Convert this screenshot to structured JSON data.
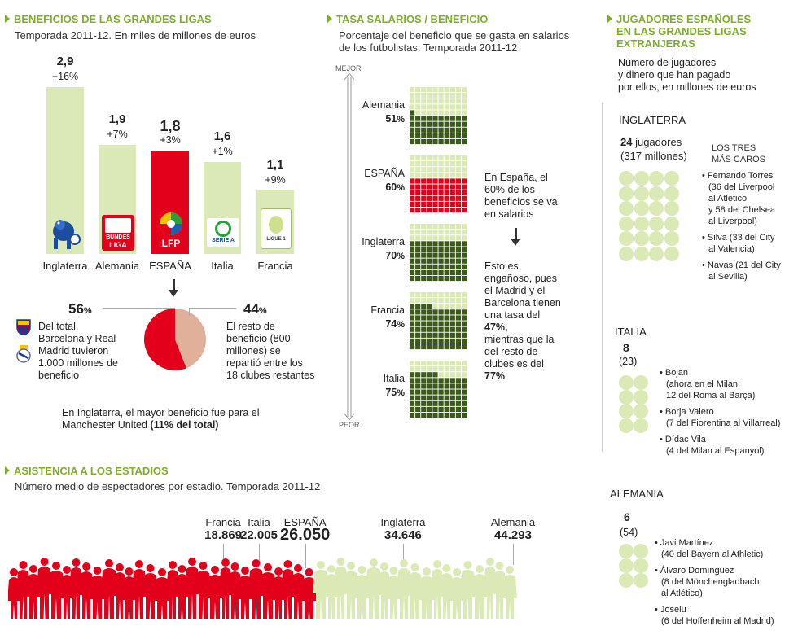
{
  "section1": {
    "title": "BENEFICIOS DE LAS GRANDES LIGAS",
    "subtitle": "Temporada 2011-12. En miles de millones de euros"
  },
  "section2": {
    "title": "TASA SALARIOS / BENEFICIO",
    "subtitle_line1": "Porcentaje del beneficio que se gasta en salarios",
    "subtitle_line2": "de los futbolistas. Temporada 2011-12",
    "axis_top": "MEJOR",
    "axis_bottom": "PEOR",
    "note1": [
      "En España, el",
      "60% de los",
      "beneficios se va",
      "en salarios"
    ],
    "note2": [
      "Esto es",
      "engañoso, pues",
      "el Madrid y el",
      "Barcelona tienen",
      "una tasa del"
    ],
    "note2_bold": "47%,",
    "note3": [
      "mientras que la",
      "del resto de",
      "clubes es del"
    ],
    "note3_bold": "77%"
  },
  "section3": {
    "title_line1": "JUGADORES ESPAÑOLES",
    "title_line2": "EN LAS GRANDES LIGAS",
    "title_line3": "EXTRANJERAS",
    "subtitle": [
      "Número de jugadores",
      "y dinero que han pagado",
      "por ellos, en millones de euros"
    ],
    "england": {
      "name": "INGLATERRA",
      "players": "24",
      "players_word": "jugadores",
      "money": "(317 millones)",
      "top3_title1": "LOS TRES",
      "top3_title2": "MÁS CAROS",
      "items": [
        [
          "• Fernando Torres",
          "(36 del Liverpool",
          "al Atlético",
          "y 58 del Chelsea",
          "al Liverpool)"
        ],
        [
          "• Silva (33 del City",
          "al Valencia)"
        ],
        [
          "• Navas (21 del City",
          "al Sevilla)"
        ]
      ]
    },
    "italy": {
      "name": "ITALIA",
      "players": "8",
      "money": "(23)",
      "items": [
        [
          "• Bojan",
          "(ahora en el Milan;",
          "12 del Roma al Barça)"
        ],
        [
          "• Borja Valero",
          "(7 del Fiorentina al Villarreal)"
        ],
        [
          "• Dídac Vila",
          "(4 del Milan al Espanyol)"
        ]
      ]
    },
    "germany": {
      "name": "ALEMANIA",
      "players": "6",
      "money": "(54)",
      "items": [
        [
          "• Javi Martínez",
          "(40 del Bayern al Athletic)"
        ],
        [
          "• Álvaro Domínguez",
          "(8 del Mönchengladbach",
          "al Atlético)"
        ],
        [
          "• Joselu",
          "(6 del Hoffenheim al Madrid)"
        ]
      ]
    }
  },
  "section4": {
    "title": "ASISTENCIA A LOS ESTADIOS",
    "subtitle": "Número medio de espectadores por estadio. Temporada 2011-12"
  },
  "pie": {
    "left_pct": "56",
    "left_text": [
      "Del total,",
      "Barcelona y Real",
      "Madrid tuvieron",
      "1.000 millones de",
      "beneficio"
    ],
    "right_pct": "44",
    "right_text": [
      "El resto de",
      "beneficio (800",
      "millones) se",
      "repartió entre los",
      "18 clubes restantes"
    ],
    "pct_sign": "%",
    "foot_line1": "En Inglaterra, el mayor beneficio fue para el",
    "foot_line2": "Manchester United",
    "foot_bold": "(11% del total)",
    "colors": {
      "big": "#e3001b",
      "rest": "#e0b09b"
    }
  },
  "colors": {
    "accent": "#7fae2e",
    "light_green": "#dbe9b6",
    "dark_green": "#3d5a1c",
    "red": "#e3001b"
  },
  "logos": {
    "inglaterra": "premier-league-lion",
    "alemania": "bundesliga",
    "espana": "lfp",
    "italia": "serie-a",
    "francia": "ligue-1"
  },
  "logo_text": {
    "bundesliga_1": "BUNDES",
    "bundesliga_2": "LIGA",
    "lfp": "LFP",
    "seriea": "SERIE A",
    "ligue1": "LIGUE 1"
  },
  "chart_data": [
    {
      "type": "bar",
      "categories": [
        "Inglaterra",
        "Alemania",
        "ESPAÑA",
        "Italia",
        "Francia"
      ],
      "values": [
        2.9,
        1.9,
        1.8,
        1.6,
        1.1
      ],
      "labels": [
        "2,9",
        "1,9",
        "1,8",
        "1,6",
        "1,1"
      ],
      "changes": [
        "+16%",
        "+7%",
        "+3%",
        "+1%",
        "+9%"
      ],
      "highlight": "ESPAÑA"
    },
    {
      "type": "pie",
      "values": [
        56,
        44
      ]
    },
    {
      "type": "bar",
      "categories": [
        "Alemania",
        "ESPAÑA",
        "Inglaterra",
        "Francia",
        "Italia"
      ],
      "values": [
        51,
        60,
        70,
        74,
        75
      ],
      "labels": [
        "51",
        "60",
        "70",
        "74",
        "75"
      ]
    },
    {
      "type": "bar",
      "categories": [
        "Francia",
        "Italia",
        "ESPAÑA",
        "Inglaterra",
        "Alemania"
      ],
      "values": [
        18869,
        22005,
        26050,
        34646,
        44293
      ],
      "labels": [
        "18.869",
        "22.005",
        "26.050",
        "34.646",
        "44.293"
      ],
      "highlight": "ESPAÑA"
    }
  ]
}
